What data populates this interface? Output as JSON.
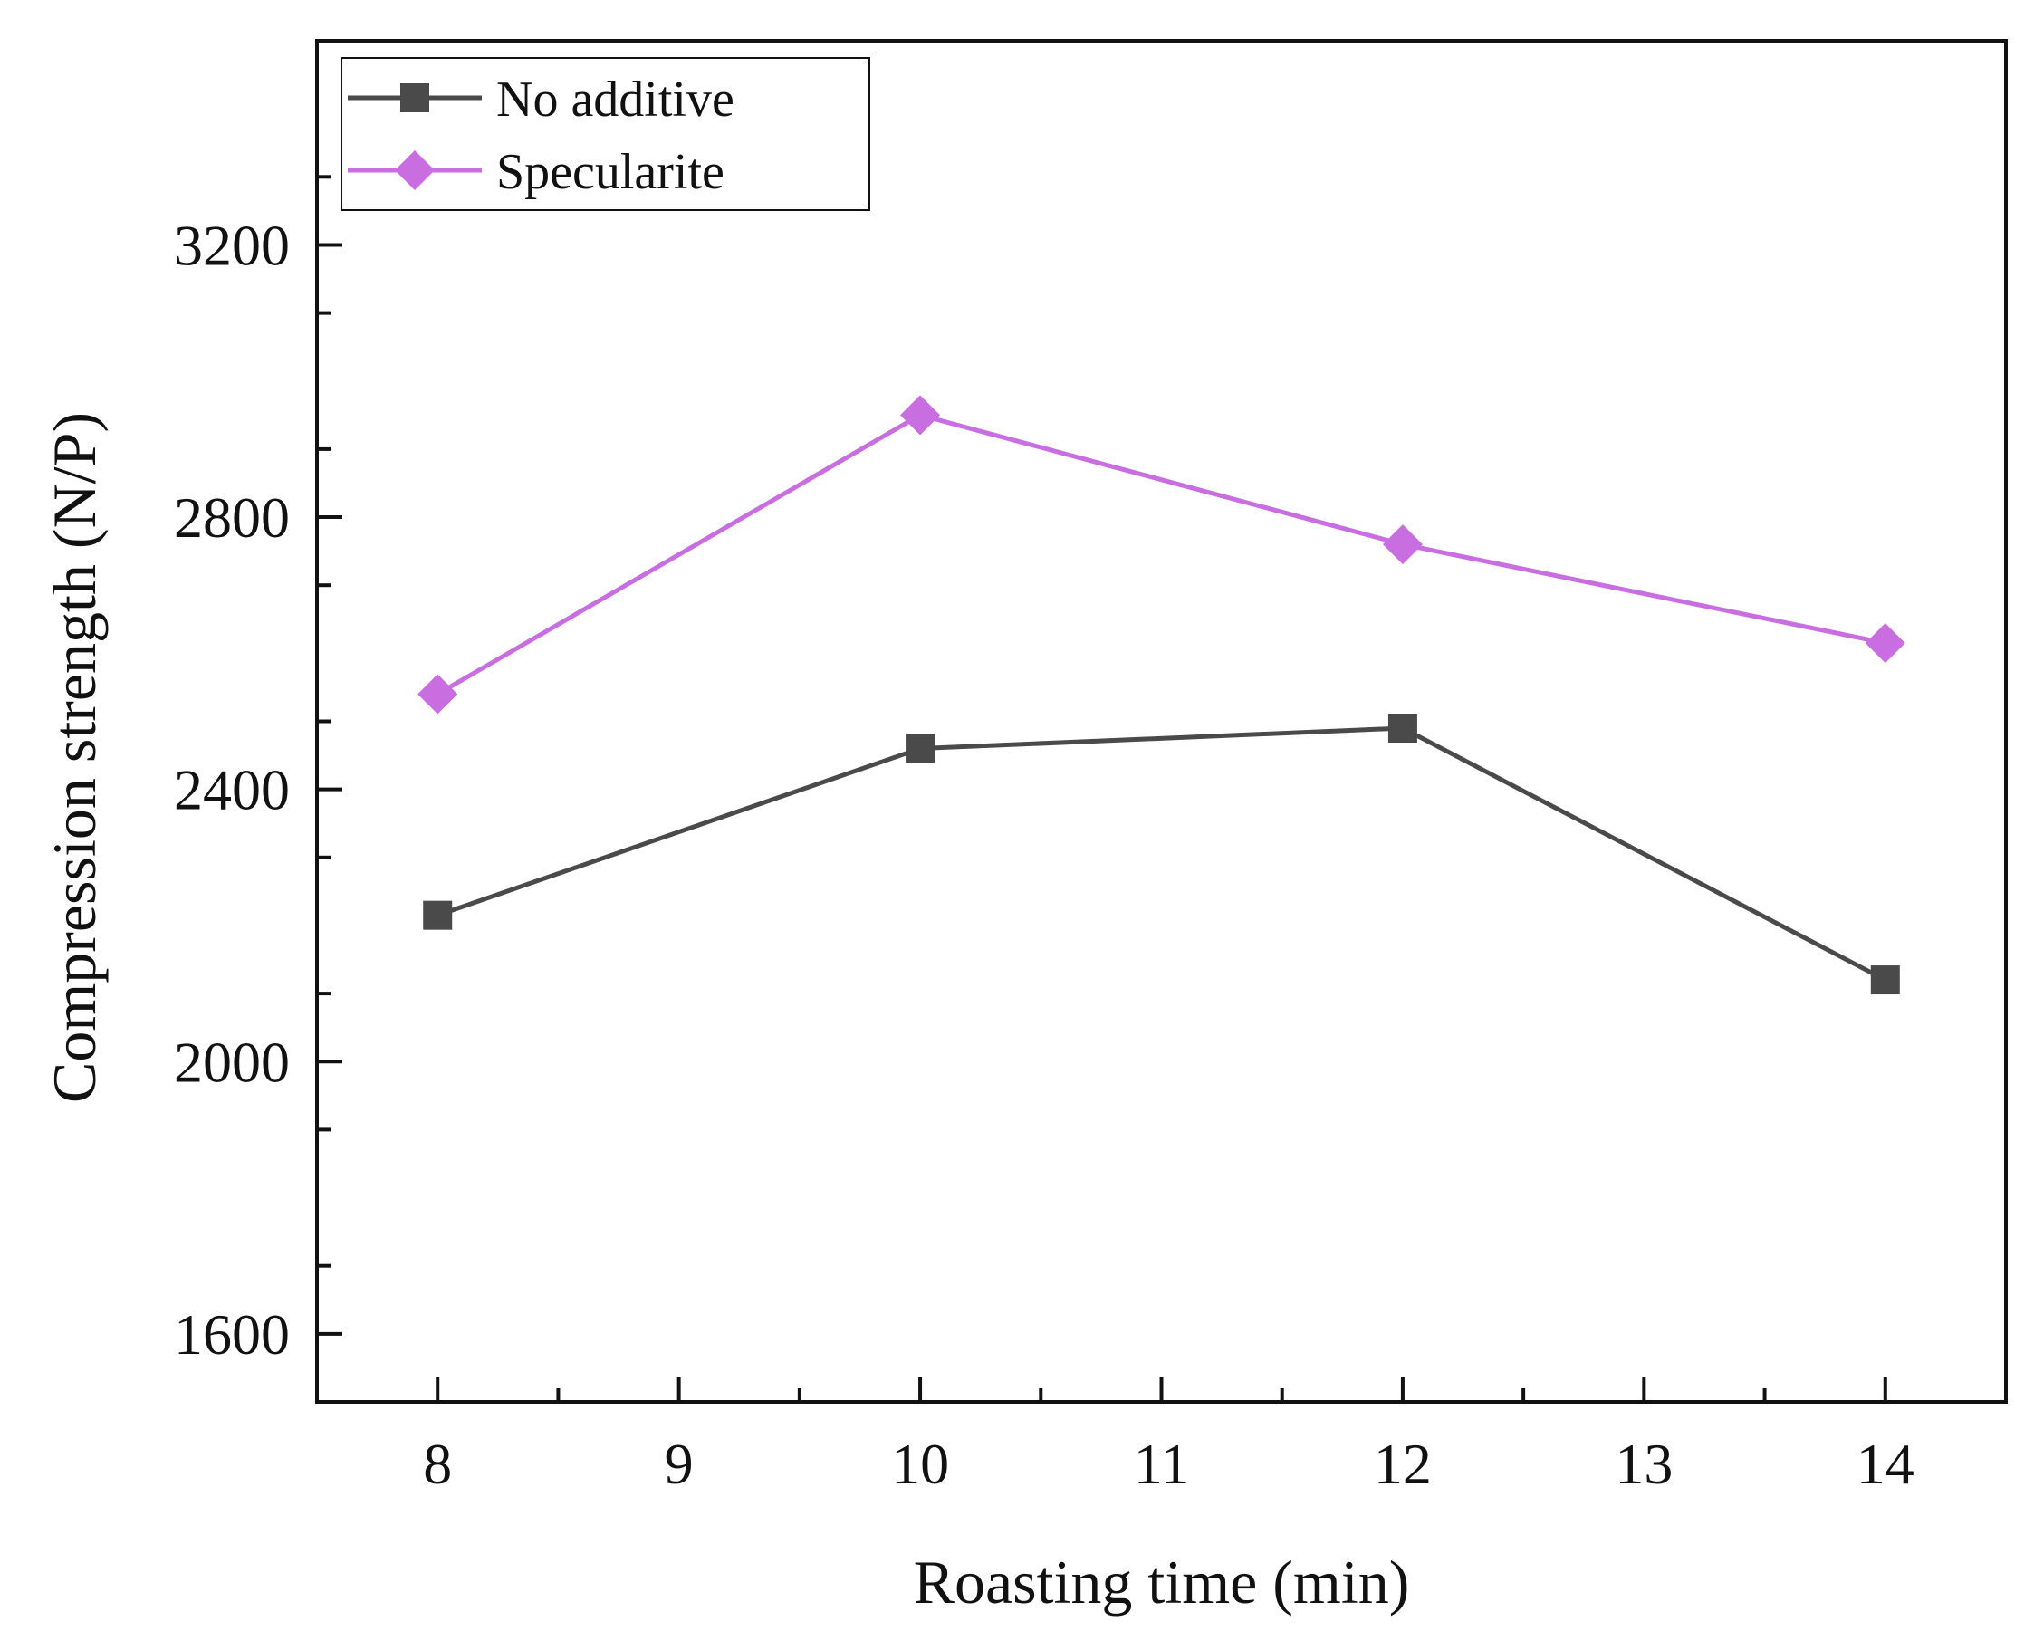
{
  "chart_data": {
    "type": "line",
    "title": "",
    "xlabel": "Roasting time (min)",
    "ylabel": "Compression strength (N/P)",
    "xlim": [
      7.5,
      14.5
    ],
    "ylim": [
      1500,
      3500
    ],
    "x_ticks": [
      8,
      9,
      10,
      11,
      12,
      13,
      14
    ],
    "x_tick_labels": [
      "8",
      "9",
      "10",
      "11",
      "12",
      "13",
      "14"
    ],
    "y_ticks": [
      1600,
      2000,
      2400,
      2800,
      3200
    ],
    "y_tick_labels": [
      "1600",
      "2000",
      "2400",
      "2800",
      "3200"
    ],
    "legend_position": "top-left",
    "grid": false,
    "series": [
      {
        "name": "No additive",
        "marker": "square",
        "color": "#4a4a4a",
        "x": [
          8,
          10,
          12,
          14
        ],
        "values": [
          2215,
          2460,
          2490,
          2120
        ]
      },
      {
        "name": "Specularite",
        "marker": "diamond",
        "color": "#c86ee0",
        "x": [
          8,
          10,
          12,
          14
        ],
        "values": [
          2540,
          2950,
          2760,
          2615
        ]
      }
    ]
  }
}
